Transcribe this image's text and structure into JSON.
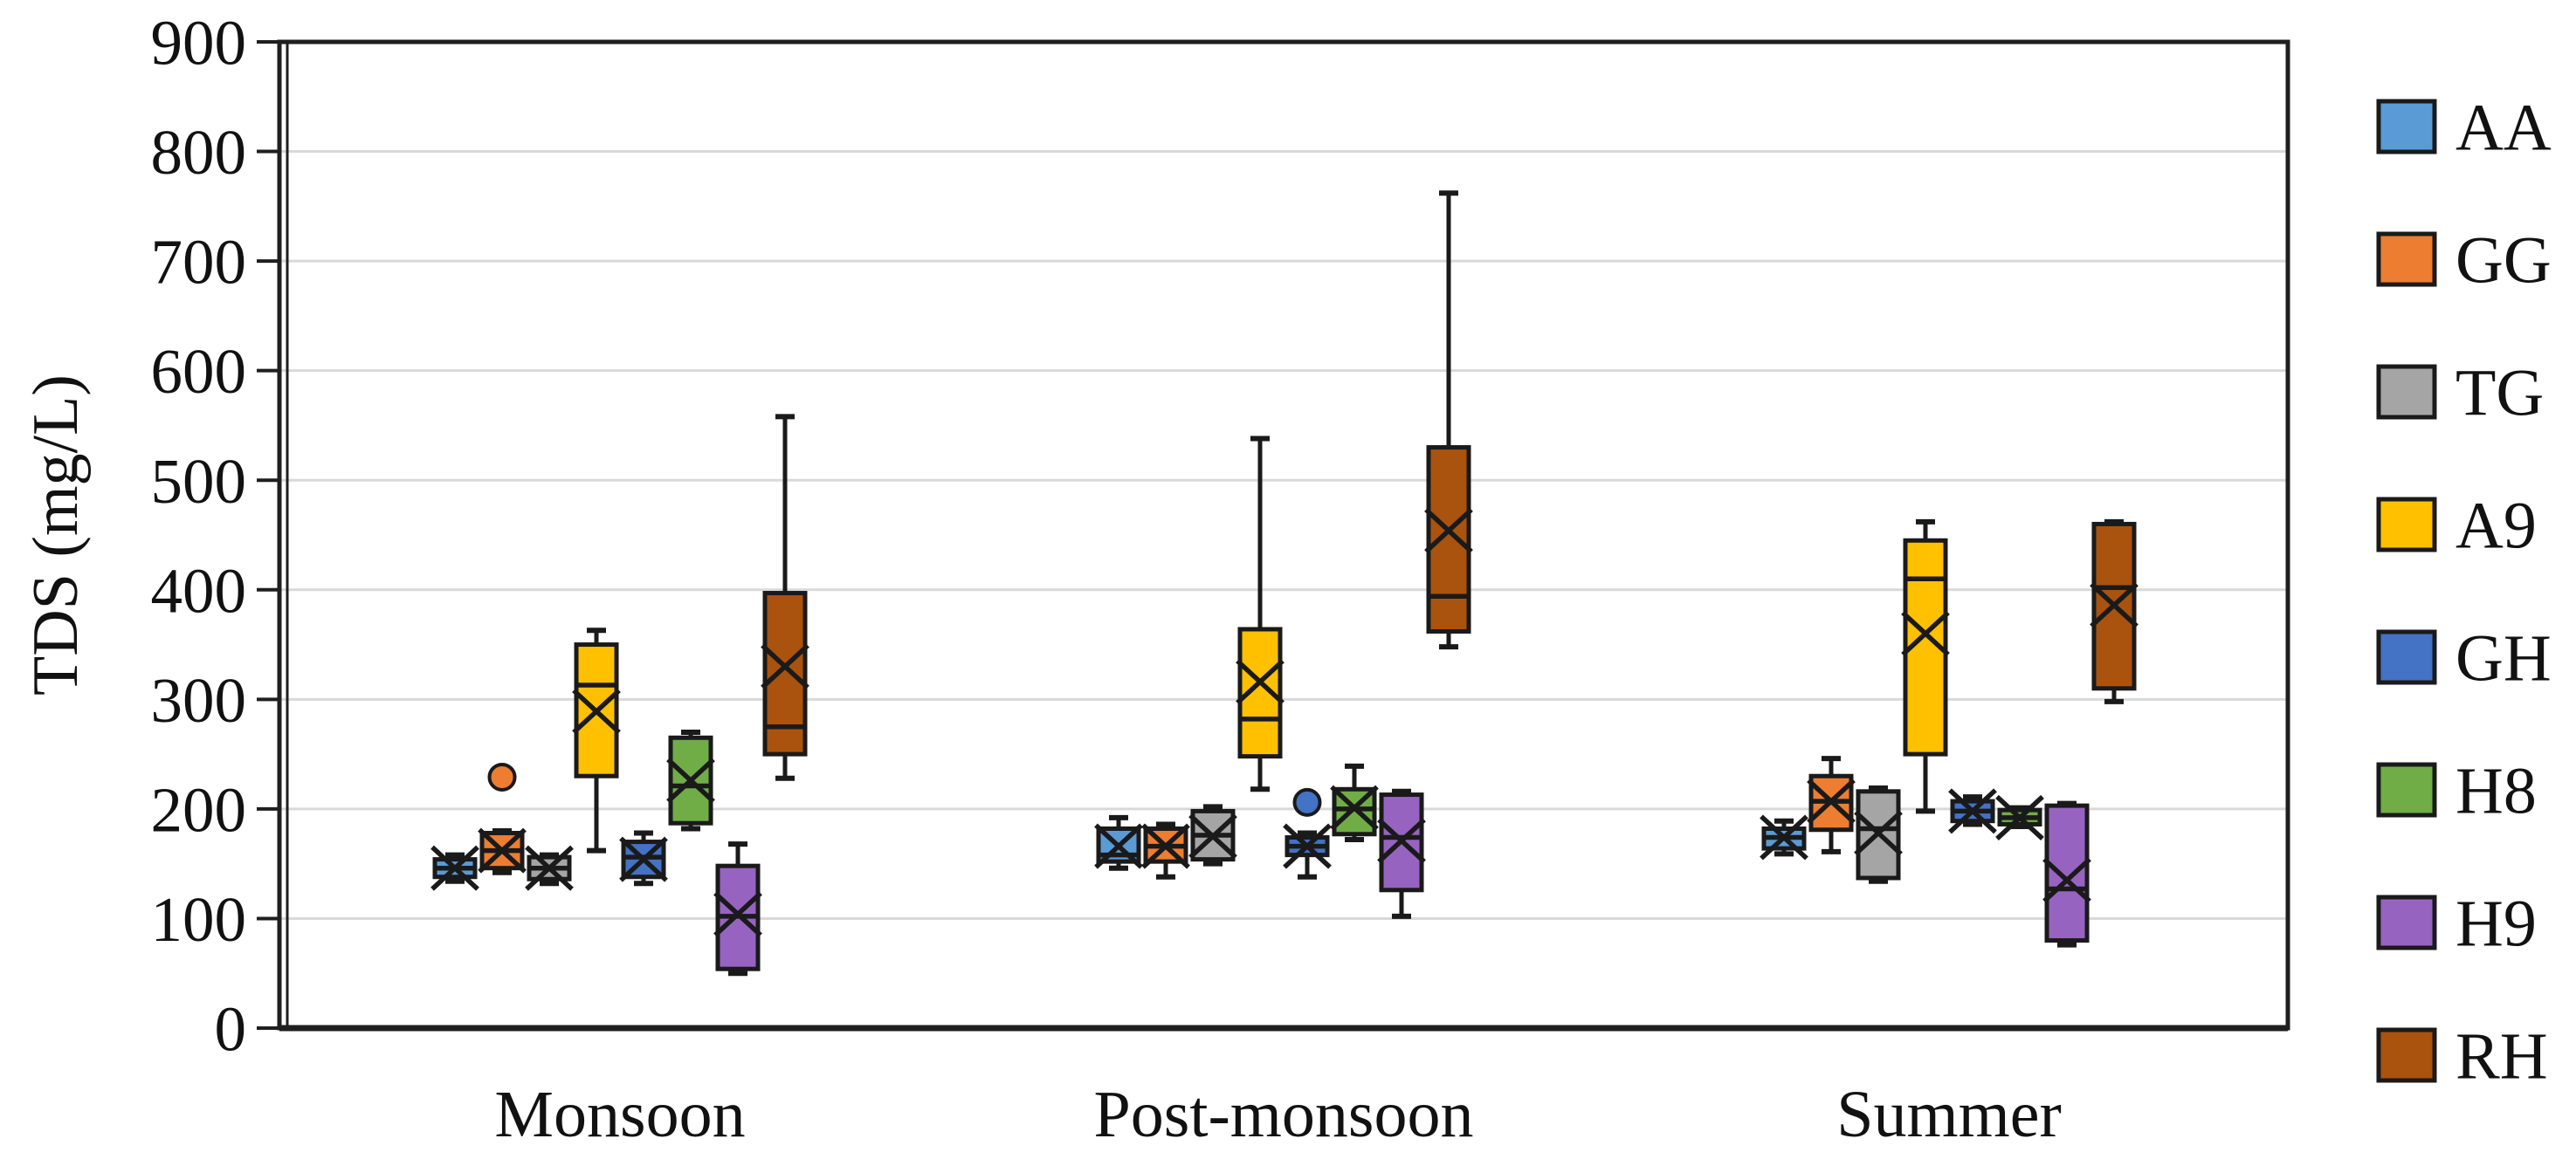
{
  "figure": {
    "background": "#FFFFFF",
    "frame_color": "#1F1F1F",
    "box_edge_color": "#1A1A1A",
    "gridline_color": "#D9D9D9",
    "text_color": "#111111"
  },
  "chart_data": {
    "type": "boxplot",
    "title": "",
    "xlabel": "",
    "ylabel": "TDS (mg/L)",
    "ylim": [
      0,
      900
    ],
    "yticks": [
      0,
      100,
      200,
      300,
      400,
      500,
      600,
      700,
      800,
      900
    ],
    "grid": "horizontal",
    "legend_position": "right",
    "categories": [
      "Monsoon",
      "Post-monsoon",
      "Summer"
    ],
    "series": [
      {
        "name": "AA",
        "color": "#5B9BD5",
        "boxes": [
          {
            "min": 134,
            "q1": 138,
            "median": 146,
            "q3": 154,
            "max": 158,
            "mean": 146,
            "outliers": []
          },
          {
            "min": 146,
            "q1": 152,
            "median": 158,
            "q3": 182,
            "max": 192,
            "mean": 166,
            "outliers": []
          },
          {
            "min": 159,
            "q1": 164,
            "median": 174,
            "q3": 182,
            "max": 189,
            "mean": 174,
            "outliers": []
          }
        ]
      },
      {
        "name": "GG",
        "color": "#ED7D31",
        "boxes": [
          {
            "min": 142,
            "q1": 146,
            "median": 162,
            "q3": 178,
            "max": 180,
            "mean": 162,
            "outliers": [
              229
            ]
          },
          {
            "min": 138,
            "q1": 152,
            "median": 166,
            "q3": 182,
            "max": 186,
            "mean": 166,
            "outliers": []
          },
          {
            "min": 161,
            "q1": 181,
            "median": 207,
            "q3": 230,
            "max": 246,
            "mean": 207,
            "outliers": []
          }
        ]
      },
      {
        "name": "TG",
        "color": "#A5A5A5",
        "boxes": [
          {
            "min": 132,
            "q1": 136,
            "median": 146,
            "q3": 156,
            "max": 158,
            "mean": 146,
            "outliers": []
          },
          {
            "min": 150,
            "q1": 154,
            "median": 176,
            "q3": 198,
            "max": 202,
            "mean": 175,
            "outliers": []
          },
          {
            "min": 134,
            "q1": 137,
            "median": 182,
            "q3": 216,
            "max": 219,
            "mean": 178,
            "outliers": []
          }
        ]
      },
      {
        "name": "A9",
        "color": "#FFC000",
        "boxes": [
          {
            "min": 162,
            "q1": 230,
            "median": 313,
            "q3": 350,
            "max": 363,
            "mean": 289,
            "outliers": []
          },
          {
            "min": 218,
            "q1": 248,
            "median": 282,
            "q3": 364,
            "max": 538,
            "mean": 316,
            "outliers": []
          },
          {
            "min": 198,
            "q1": 250,
            "median": 410,
            "q3": 445,
            "max": 462,
            "mean": 360,
            "outliers": []
          }
        ]
      },
      {
        "name": "GH",
        "color": "#4472C4",
        "boxes": [
          {
            "min": 132,
            "q1": 138,
            "median": 156,
            "q3": 170,
            "max": 178,
            "mean": 154,
            "outliers": []
          },
          {
            "min": 138,
            "q1": 158,
            "median": 166,
            "q3": 174,
            "max": 178,
            "mean": 166,
            "outliers": [
              206
            ]
          },
          {
            "min": 186,
            "q1": 189,
            "median": 198,
            "q3": 207,
            "max": 211,
            "mean": 198,
            "outliers": []
          }
        ]
      },
      {
        "name": "H8",
        "color": "#70AD47",
        "boxes": [
          {
            "min": 182,
            "q1": 187,
            "median": 221,
            "q3": 265,
            "max": 270,
            "mean": 226,
            "outliers": []
          },
          {
            "min": 172,
            "q1": 177,
            "median": 200,
            "q3": 218,
            "max": 239,
            "mean": 201,
            "outliers": []
          },
          {
            "min": 184,
            "q1": 186,
            "median": 192,
            "q3": 199,
            "max": 201,
            "mean": 192,
            "outliers": []
          }
        ]
      },
      {
        "name": "H9",
        "color": "#9763C1",
        "boxes": [
          {
            "min": 50,
            "q1": 54,
            "median": 102,
            "q3": 148,
            "max": 168,
            "mean": 104,
            "outliers": []
          },
          {
            "min": 102,
            "q1": 126,
            "median": 174,
            "q3": 213,
            "max": 216,
            "mean": 171,
            "outliers": []
          },
          {
            "min": 76,
            "q1": 80,
            "median": 127,
            "q3": 203,
            "max": 205,
            "mean": 135,
            "outliers": []
          }
        ]
      },
      {
        "name": "RH",
        "color": "#A9530E",
        "boxes": [
          {
            "min": 228,
            "q1": 250,
            "median": 275,
            "q3": 397,
            "max": 558,
            "mean": 330,
            "outliers": []
          },
          {
            "min": 348,
            "q1": 362,
            "median": 394,
            "q3": 530,
            "max": 762,
            "mean": 454,
            "outliers": []
          },
          {
            "min": 298,
            "q1": 310,
            "median": 402,
            "q3": 460,
            "max": 462,
            "mean": 386,
            "outliers": []
          }
        ]
      }
    ]
  }
}
